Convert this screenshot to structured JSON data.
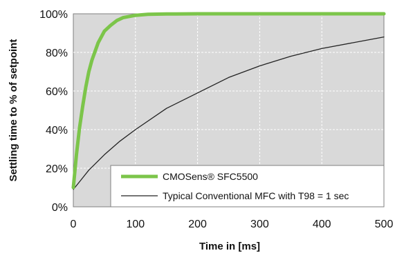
{
  "chart_data": {
    "type": "line",
    "xlabel": "Time in [ms]",
    "ylabel": "Settling time to % of setpoint",
    "xlim": [
      0,
      500
    ],
    "ylim": [
      0,
      100
    ],
    "x_ticks": [
      0,
      100,
      200,
      300,
      400,
      500
    ],
    "y_ticks": [
      0,
      20,
      40,
      60,
      80,
      100
    ],
    "x_tick_labels": [
      "0",
      "100",
      "200",
      "300",
      "400",
      "500"
    ],
    "y_tick_labels": [
      "0%",
      "20%",
      "40%",
      "60%",
      "80%",
      "100%"
    ],
    "grid": true,
    "plot_background": "#d9d9d9",
    "legend_position": "bottom-right",
    "series": [
      {
        "name": "CMOSens® SFC5500",
        "color": "#7cc54a",
        "x": [
          0,
          5,
          10,
          15,
          20,
          25,
          30,
          40,
          50,
          60,
          70,
          80,
          100,
          120,
          150,
          200,
          300,
          400,
          500
        ],
        "y": [
          10,
          27,
          41,
          52,
          62,
          70,
          76,
          85,
          91,
          94,
          96.5,
          98,
          99.2,
          99.7,
          99.9,
          100,
          100,
          100,
          100
        ]
      },
      {
        "name": "Typical Conventional MFC with T98 = 1 sec",
        "color": "#222222",
        "x": [
          0,
          10,
          25,
          50,
          75,
          100,
          150,
          200,
          250,
          300,
          350,
          400,
          450,
          500
        ],
        "y": [
          9,
          13,
          19,
          27,
          34,
          40,
          51,
          59,
          67,
          73,
          78,
          82,
          85,
          88
        ]
      }
    ]
  }
}
